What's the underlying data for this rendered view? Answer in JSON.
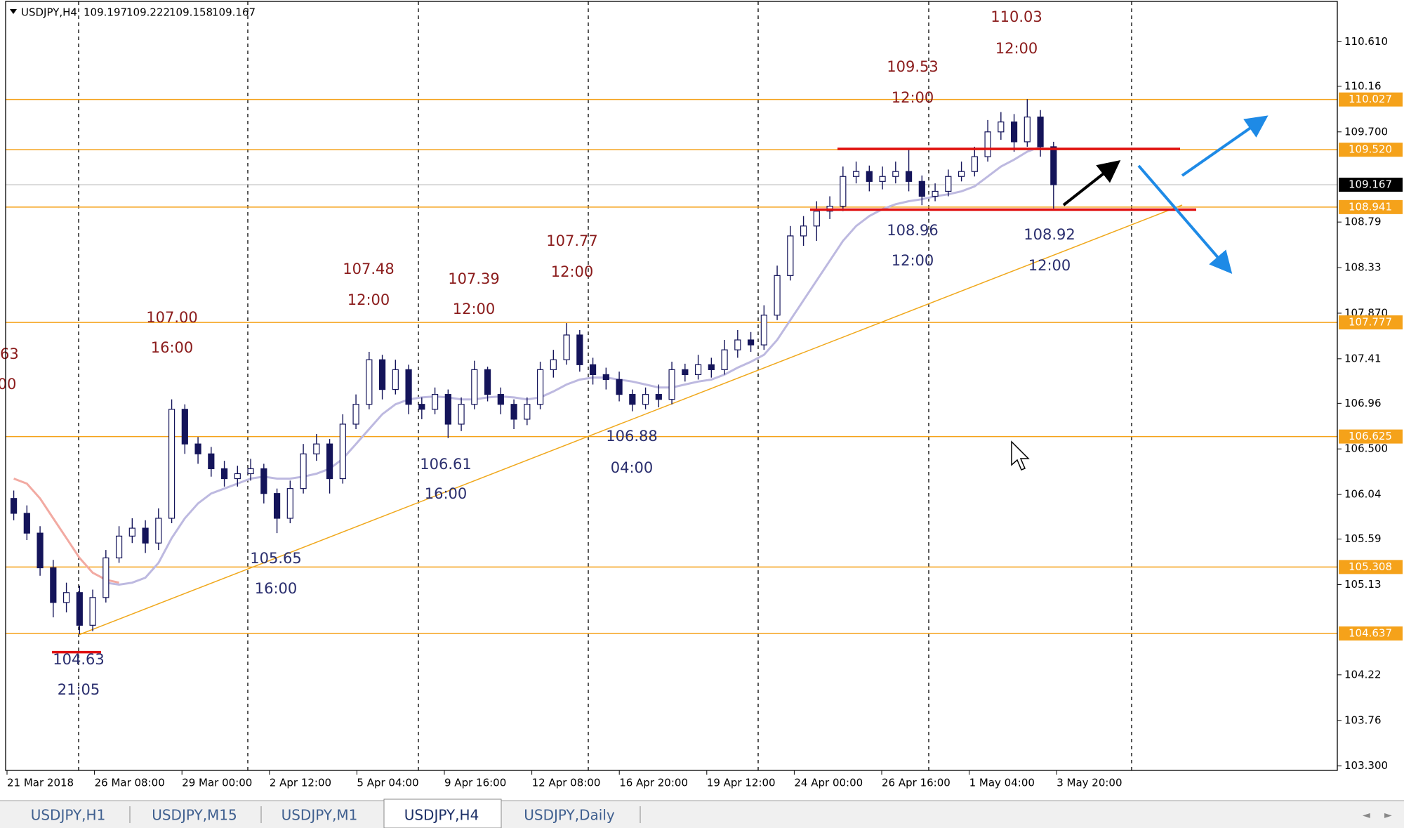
{
  "chart_data": {
    "type": "candlestick",
    "symbol": "USDJPY,H4",
    "last_bar": {
      "open": 109.197,
      "high": 109.222,
      "low": 109.158,
      "close": 109.167
    },
    "candles": {
      "open": [
        106.0,
        105.85,
        105.65,
        105.3,
        104.95,
        105.05,
        104.72,
        105.0,
        105.4,
        105.62,
        105.7,
        105.55,
        105.8,
        106.9,
        106.55,
        106.45,
        106.3,
        106.2,
        106.25,
        106.3,
        106.05,
        105.8,
        106.1,
        106.45,
        106.55,
        106.2,
        106.75,
        106.95,
        107.4,
        107.1,
        107.3,
        106.95,
        106.9,
        107.05,
        106.75,
        106.95,
        107.3,
        107.05,
        106.95,
        106.8,
        106.95,
        107.3,
        107.4,
        107.65,
        107.35,
        107.25,
        107.2,
        107.05,
        106.95,
        107.05,
        107.0,
        107.3,
        107.25,
        107.35,
        107.3,
        107.5,
        107.6,
        107.55,
        107.85,
        108.25,
        108.65,
        108.75,
        108.9,
        108.95,
        109.25,
        109.3,
        109.2,
        109.25,
        109.3,
        109.2,
        109.05,
        109.1,
        109.25,
        109.3,
        109.45,
        109.7,
        109.8,
        109.6,
        109.85,
        109.55
      ],
      "high": [
        106.08,
        105.93,
        105.72,
        105.38,
        105.15,
        105.12,
        105.08,
        105.48,
        105.72,
        105.8,
        105.78,
        105.9,
        107.0,
        106.95,
        106.62,
        106.52,
        106.38,
        106.33,
        106.4,
        106.35,
        106.1,
        106.18,
        106.55,
        106.65,
        106.6,
        106.85,
        107.05,
        107.48,
        107.45,
        107.4,
        107.35,
        107.02,
        107.12,
        107.1,
        107.02,
        107.39,
        107.33,
        107.12,
        107.0,
        107.02,
        107.38,
        107.5,
        107.77,
        107.7,
        107.42,
        107.32,
        107.28,
        107.1,
        107.12,
        107.15,
        107.38,
        107.36,
        107.45,
        107.42,
        107.6,
        107.7,
        107.68,
        107.95,
        108.35,
        108.75,
        108.85,
        109.0,
        109.05,
        109.35,
        109.4,
        109.36,
        109.35,
        109.4,
        109.53,
        109.26,
        109.18,
        109.32,
        109.4,
        109.55,
        109.82,
        109.9,
        109.88,
        110.03,
        109.92,
        109.6
      ],
      "low": [
        105.78,
        105.58,
        105.22,
        104.8,
        104.85,
        104.63,
        104.66,
        104.95,
        105.35,
        105.55,
        105.45,
        105.48,
        105.75,
        106.45,
        106.35,
        106.22,
        106.12,
        106.12,
        106.18,
        105.95,
        105.65,
        105.75,
        106.05,
        106.38,
        106.05,
        106.15,
        106.7,
        106.9,
        107.0,
        107.05,
        106.85,
        106.8,
        106.85,
        106.61,
        106.68,
        106.9,
        106.98,
        106.85,
        106.7,
        106.74,
        106.9,
        107.22,
        107.35,
        107.28,
        107.15,
        107.1,
        106.98,
        106.88,
        106.9,
        106.92,
        106.95,
        107.18,
        107.2,
        107.22,
        107.25,
        107.42,
        107.48,
        107.5,
        107.8,
        108.2,
        108.55,
        108.6,
        108.82,
        108.9,
        109.18,
        109.1,
        109.12,
        109.18,
        109.1,
        108.96,
        109.0,
        109.05,
        109.2,
        109.25,
        109.4,
        109.62,
        109.5,
        109.55,
        109.45,
        108.92
      ],
      "close": [
        105.85,
        105.65,
        105.3,
        104.95,
        105.05,
        104.72,
        105.0,
        105.4,
        105.62,
        105.7,
        105.55,
        105.8,
        106.9,
        106.55,
        106.45,
        106.3,
        106.2,
        106.25,
        106.3,
        106.05,
        105.8,
        106.1,
        106.45,
        106.55,
        106.2,
        106.75,
        106.95,
        107.4,
        107.1,
        107.3,
        106.95,
        106.9,
        107.05,
        106.75,
        106.95,
        107.3,
        107.05,
        106.95,
        106.8,
        106.95,
        107.3,
        107.4,
        107.65,
        107.35,
        107.25,
        107.2,
        107.05,
        106.95,
        107.05,
        107.0,
        107.3,
        107.25,
        107.35,
        107.3,
        107.5,
        107.6,
        107.55,
        107.85,
        108.25,
        108.65,
        108.75,
        108.9,
        108.95,
        109.25,
        109.3,
        109.2,
        109.25,
        109.3,
        109.2,
        109.05,
        109.1,
        109.25,
        109.3,
        109.45,
        109.7,
        109.8,
        109.6,
        109.85,
        109.55,
        109.167
      ],
      "color": "#14145a"
    },
    "moving_averages": [
      {
        "color": "#f2aaa2",
        "values": [
          106.2,
          106.15,
          106.0,
          105.8,
          105.6,
          105.4,
          105.25,
          105.18,
          105.15,
          null,
          null,
          null,
          null,
          null,
          null,
          null,
          null,
          null,
          null,
          null,
          null,
          null,
          null,
          null,
          null,
          null,
          null,
          null,
          null,
          null,
          null,
          null,
          null,
          null,
          null,
          null,
          null,
          null,
          null,
          null,
          null,
          null,
          null,
          null,
          null,
          null,
          null,
          null,
          null,
          null,
          null,
          null,
          null,
          null,
          null,
          null,
          null,
          null,
          null,
          null,
          null,
          null,
          null,
          null,
          null,
          null,
          null,
          null,
          null,
          null,
          null,
          null,
          null,
          null,
          null,
          null,
          null,
          null,
          null,
          null
        ]
      },
      {
        "color": "#bdb9e0",
        "values": [
          null,
          null,
          null,
          null,
          null,
          null,
          null,
          105.15,
          105.13,
          105.15,
          105.2,
          105.35,
          105.6,
          105.8,
          105.95,
          106.05,
          106.1,
          106.15,
          106.2,
          106.22,
          106.2,
          106.2,
          106.22,
          106.25,
          106.3,
          106.4,
          106.55,
          106.7,
          106.85,
          106.95,
          107.0,
          107.02,
          107.03,
          107.02,
          107.0,
          107.0,
          107.02,
          107.03,
          107.02,
          107.0,
          107.02,
          107.08,
          107.15,
          107.2,
          107.22,
          107.22,
          107.2,
          107.18,
          107.15,
          107.12,
          107.12,
          107.15,
          107.18,
          107.2,
          107.25,
          107.32,
          107.38,
          107.45,
          107.6,
          107.8,
          108.0,
          108.2,
          108.4,
          108.6,
          108.75,
          108.85,
          108.92,
          108.97,
          109.0,
          109.02,
          109.05,
          109.07,
          109.1,
          109.15,
          109.25,
          109.35,
          109.42,
          109.5,
          109.55,
          null
        ]
      }
    ],
    "ylim": [
      103.255,
      111.017
    ],
    "yticks": [
      {
        "value": 110.61,
        "label": "110.610"
      },
      110.16,
      {
        "value": 109.7,
        "label": "109.700"
      },
      108.79,
      108.33,
      {
        "value": 107.87,
        "label": "107.870"
      },
      107.41,
      106.96,
      {
        "value": 106.5,
        "label": "106.500"
      },
      106.04,
      105.59,
      105.13,
      104.22,
      103.76,
      {
        "value": 103.3,
        "label": "103.300"
      }
    ],
    "level_color": "#f5a21a",
    "levels": [
      110.027,
      {
        "value": 109.52,
        "label": "109.520"
      },
      108.941,
      107.777,
      106.625,
      105.308,
      104.637
    ],
    "current_price": 109.167,
    "time_labels": [
      "21 Mar 2018",
      "26 Mar 08:00",
      "29 Mar 00:00",
      "2 Apr 12:00",
      "5 Apr 04:00",
      "9 Apr 16:00",
      "12 Apr 08:00",
      "16 Apr 20:00",
      "19 Apr 12:00",
      "24 Apr 00:00",
      "26 Apr 16:00",
      "1 May 04:00",
      "3 May 20:00"
    ],
    "annotations": [
      {
        "price": "110.03",
        "time": "12:00",
        "color": "#8b1c1c"
      },
      {
        "price": "109.53",
        "time": "12:00",
        "color": "#8b1c1c"
      },
      {
        "price": "108.96",
        "time": "12:00",
        "color": "#2a2e6e"
      },
      {
        "price": "108.92",
        "time": "12:00",
        "color": "#2a2e6e"
      },
      {
        "price": "107.77",
        "time": "12:00",
        "color": "#8b1c1c"
      },
      {
        "price": "107.48",
        "time": "12:00",
        "color": "#8b1c1c"
      },
      {
        "price": "107.39",
        "time": "12:00",
        "color": "#8b1c1c"
      },
      {
        "price": "107.00",
        "time": "16:00",
        "color": "#8b1c1c"
      },
      {
        "price": "106.61",
        "time": "16:00",
        "color": "#2a2e6e"
      },
      {
        "price": "106.88",
        "time": "04:00",
        "color": "#2a2e6e"
      },
      {
        "price": "105.65",
        "time": "16:00",
        "color": "#2a2e6e"
      },
      {
        "price": "104.63",
        "time": "21:05",
        "color": "#2a2e6e"
      },
      {
        "price": ".63",
        "time": "00",
        "color": "#8b1c1c"
      }
    ],
    "tabs": [
      "USDJPY,H1",
      "USDJPY,M15",
      "USDJPY,M1",
      "USDJPY,H4",
      "USDJPY,Daily"
    ],
    "active_tab": 3
  }
}
